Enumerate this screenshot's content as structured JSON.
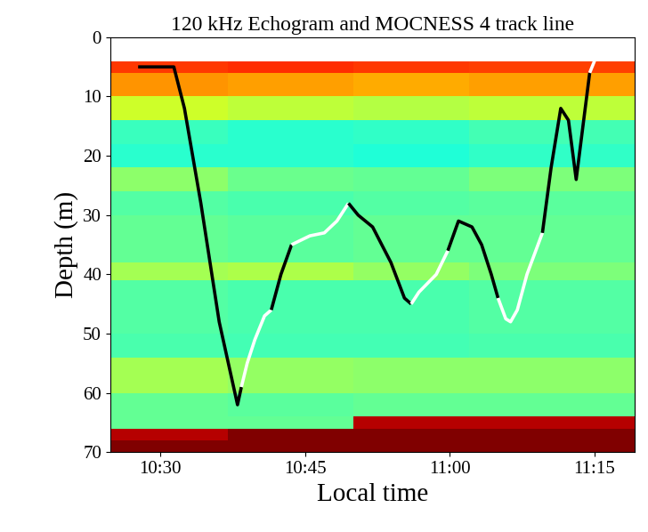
{
  "chart_data": {
    "type": "line",
    "title": "120 kHz Echogram and MOCNESS 4 track line",
    "x_label": "Local time",
    "y_label": "Depth (m)",
    "xlim": [
      624.8,
      679.2
    ],
    "xticks": [
      {
        "value": 630,
        "label": "10:30"
      },
      {
        "value": 645,
        "label": "10:45"
      },
      {
        "value": 660,
        "label": "11:00"
      },
      {
        "value": 675,
        "label": "11:15"
      }
    ],
    "ylim": [
      70,
      0
    ],
    "yticks": [
      0,
      10,
      20,
      30,
      40,
      50,
      60,
      70
    ],
    "grid": false,
    "echogram": {
      "x_edges": [
        624.8,
        637,
        650,
        662,
        679.2
      ],
      "y_edges": [
        0,
        4,
        6,
        10,
        14,
        18,
        22,
        26,
        30,
        38,
        41,
        50,
        54,
        60,
        64,
        66,
        68,
        70
      ],
      "cell_range": [
        0,
        1
      ],
      "cells": [
        [
          null,
          null,
          null,
          null
        ],
        [
          0.85,
          0.86,
          0.85,
          0.84
        ],
        [
          0.75,
          0.74,
          0.73,
          0.74
        ],
        [
          0.6,
          0.58,
          0.57,
          0.58
        ],
        [
          0.42,
          0.4,
          0.41,
          0.43
        ],
        [
          0.4,
          0.4,
          0.39,
          0.41
        ],
        [
          0.52,
          0.48,
          0.47,
          0.5
        ],
        [
          0.45,
          0.44,
          0.45,
          0.46
        ],
        [
          0.47,
          0.46,
          0.47,
          0.47
        ],
        [
          0.55,
          0.56,
          0.53,
          0.5
        ],
        [
          0.45,
          0.44,
          0.44,
          0.45
        ],
        [
          0.44,
          0.43,
          0.43,
          0.44
        ],
        [
          0.55,
          0.53,
          0.52,
          0.52
        ],
        [
          0.47,
          0.46,
          0.47,
          0.47
        ],
        [
          0.47,
          0.47,
          0.95,
          0.95
        ],
        [
          0.95,
          1,
          1,
          1
        ],
        [
          1,
          1,
          1,
          1
        ]
      ]
    },
    "series": [
      {
        "color": "#000000",
        "x": [
          627.7,
          631.4,
          632.5,
          634.2,
          636.1,
          638.0,
          638.4
        ],
        "values": [
          5,
          5,
          12,
          28,
          48,
          62,
          59
        ]
      },
      {
        "color": "#ffffff",
        "x": [
          638.4,
          639.0,
          639.8,
          640.8,
          641.5
        ],
        "values": [
          59,
          55,
          51,
          47,
          46
        ]
      },
      {
        "color": "#000000",
        "x": [
          641.5,
          642.5,
          643.6
        ],
        "values": [
          46,
          40,
          35
        ]
      },
      {
        "color": "#ffffff",
        "x": [
          643.6,
          645.5,
          647.0,
          648.3,
          649.5
        ],
        "values": [
          35,
          33.5,
          33,
          31,
          28
        ]
      },
      {
        "color": "#000000",
        "x": [
          649.5,
          650.5,
          652.0,
          653.9,
          655.3,
          656.0
        ],
        "values": [
          28,
          30,
          32,
          38,
          44,
          45
        ]
      },
      {
        "color": "#ffffff",
        "x": [
          656.0,
          656.8,
          658.6,
          659.8
        ],
        "values": [
          45,
          43,
          40,
          36
        ]
      },
      {
        "color": "#000000",
        "x": [
          659.8,
          660.9,
          662.3,
          663.3,
          664.3,
          665.0
        ],
        "values": [
          36,
          31,
          32,
          35,
          40,
          44
        ]
      },
      {
        "color": "#ffffff",
        "x": [
          665.0,
          665.8,
          666.3,
          667.0,
          668.0,
          669.6
        ],
        "values": [
          44,
          47.5,
          48,
          46,
          40,
          33
        ]
      },
      {
        "color": "#000000",
        "x": [
          669.6,
          670.5,
          671.5,
          672.3,
          673.1,
          673.8,
          674.5
        ],
        "values": [
          33,
          22,
          12,
          14,
          24,
          15,
          6
        ]
      },
      {
        "color": "#ffffff",
        "x": [
          674.5,
          675.0
        ],
        "values": [
          6,
          4
        ]
      }
    ]
  }
}
